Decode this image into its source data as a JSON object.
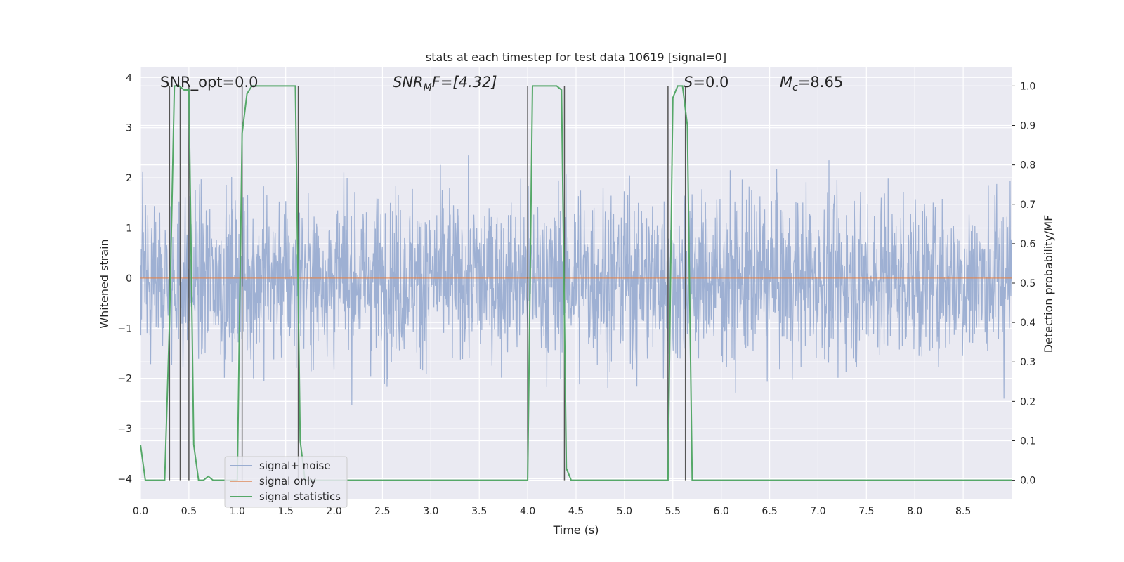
{
  "chart_data": {
    "type": "line",
    "title": "stats at each timestep for test data 10619 [signal=0]",
    "xlabel": "Time (s)",
    "ylabel": "Whitened strain",
    "y2label": "Detection probability/MF",
    "xlim": [
      0,
      9.0
    ],
    "ylim": [
      -4.4,
      4.2
    ],
    "y2lim": [
      -0.047,
      1.047
    ],
    "xticks": [
      "0.0",
      "0.5",
      "1.0",
      "1.5",
      "2.0",
      "2.5",
      "3.0",
      "3.5",
      "4.0",
      "4.5",
      "5.0",
      "5.5",
      "6.0",
      "6.5",
      "7.0",
      "7.5",
      "8.0",
      "8.5"
    ],
    "yticks": [
      "4",
      "3",
      "2",
      "1",
      "0",
      "−1",
      "−2",
      "−3",
      "−4"
    ],
    "y2ticks": [
      "1.0",
      "0.9",
      "0.8",
      "0.7",
      "0.6",
      "0.5",
      "0.4",
      "0.3",
      "0.2",
      "0.1",
      "0.0"
    ],
    "grid": true,
    "legend_position": "lower-left",
    "annotations": {
      "snr_opt": "SNR_opt=0.0",
      "snr_mf_main": "SNR",
      "snr_mf_sub": "M",
      "snr_mf_tail": "F=[4.32]",
      "s_var": "S",
      "s_tail": "=0.0",
      "mc_var": "M",
      "mc_sub": "c",
      "mc_tail": "=8.65"
    },
    "series": [
      {
        "name": "signal+ noise",
        "color": "#9aadd1",
        "axis": "left",
        "description_values": "whitened noise, amplitude roughly within ±3.5"
      },
      {
        "name": "signal only",
        "color": "#dd8452",
        "axis": "left",
        "x": [
          0,
          9.0
        ],
        "y": [
          0,
          0
        ]
      },
      {
        "name": "signal statistics",
        "color": "#55a868",
        "axis": "right",
        "x": [
          0.0,
          0.05,
          0.1,
          0.2,
          0.25,
          0.3,
          0.35,
          0.4,
          0.45,
          0.5,
          0.55,
          0.6,
          0.65,
          0.7,
          0.75,
          0.8,
          0.85,
          0.9,
          0.95,
          1.0,
          1.05,
          1.1,
          1.15,
          1.2,
          1.6,
          1.65,
          1.7,
          1.75,
          1.8,
          3.95,
          4.0,
          4.05,
          4.1,
          4.3,
          4.35,
          4.4,
          4.45,
          4.5,
          4.55,
          5.4,
          5.45,
          5.5,
          5.55,
          5.6,
          5.65,
          5.7,
          5.75,
          5.8,
          9.0
        ],
        "y": [
          0.09,
          0.0,
          0.0,
          0.0,
          0.0,
          0.4,
          1.0,
          1.0,
          0.99,
          0.99,
          0.09,
          0.0,
          0.0,
          0.01,
          0.0,
          0.0,
          0.0,
          0.0,
          0.0,
          0.0,
          0.88,
          0.98,
          1.0,
          1.0,
          1.0,
          0.1,
          0.0,
          0.0,
          0.0,
          0.0,
          0.0,
          1.0,
          1.0,
          1.0,
          0.99,
          0.03,
          0.0,
          0.0,
          0.0,
          0.0,
          0.0,
          0.97,
          1.0,
          1.0,
          0.9,
          0.0,
          0.0,
          0.0,
          0.0
        ]
      }
    ],
    "vlines": [
      0.3,
      0.41,
      0.5,
      1.05,
      1.63,
      4.0,
      4.38,
      5.45,
      5.63
    ]
  },
  "colors": {
    "background": "#eaeaf2",
    "grid": "#ffffff",
    "vline": "#555555"
  }
}
